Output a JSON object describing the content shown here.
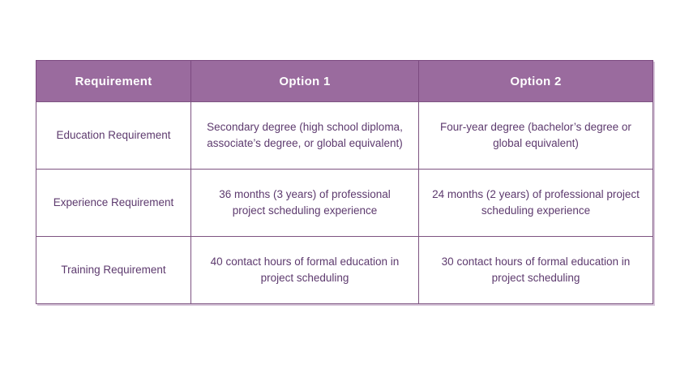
{
  "colors": {
    "header_bg": "#9a6b9e",
    "header_text": "#ffffff",
    "border": "#7d5481",
    "header_divider": "#7c4a80",
    "cell_text": "#5d3a6e",
    "page_bg": "#ffffff",
    "shadow": "#d8c7da"
  },
  "table": {
    "headers": [
      "Requirement",
      "Option 1",
      "Option 2"
    ],
    "rows": [
      {
        "requirement": "Education Requirement",
        "option1": "Secondary degree (high school diploma, associate’s degree, or global equivalent)",
        "option2": "Four-year degree (bachelor’s degree or global equivalent)"
      },
      {
        "requirement": "Experience Requirement",
        "option1": "36 months (3 years) of professional project scheduling experience",
        "option2": "24 months (2 years) of professional project scheduling experience"
      },
      {
        "requirement": "Training Requirement",
        "option1": "40 contact hours of formal education in project scheduling",
        "option2": "30 contact hours of formal education in project scheduling"
      }
    ]
  }
}
